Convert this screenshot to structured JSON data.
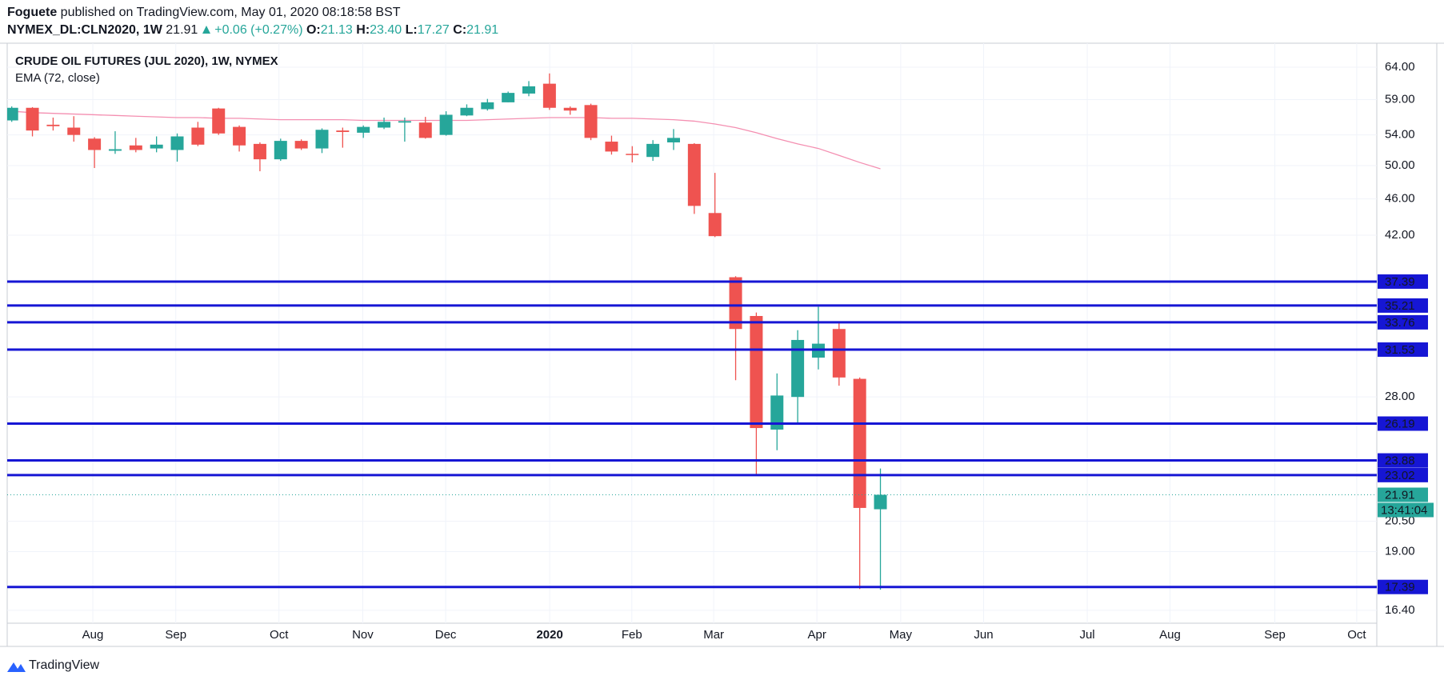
{
  "header": {
    "author": "Foguete",
    "published": "published on TradingView.com, May 01, 2020 08:18:58 BST",
    "symbol": "NYMEX_DL:CLN2020, 1W",
    "price": "21.91",
    "change": "+0.06 (+0.27%)",
    "ohlc": [
      {
        "label": "O:",
        "value": "21.13"
      },
      {
        "label": "H:",
        "value": "23.40"
      },
      {
        "label": "L:",
        "value": "17.27"
      },
      {
        "label": "C:",
        "value": "21.91"
      }
    ]
  },
  "chart_data": {
    "type": "candlestick",
    "title": "CRUDE OIL FUTURES (JUL 2020), 1W, NYMEX",
    "x": [
      0,
      1,
      2,
      3,
      4,
      5,
      6,
      7,
      8,
      9,
      10,
      11,
      12,
      13,
      14,
      15,
      16,
      17,
      18,
      19,
      20,
      21,
      22,
      23,
      24,
      25,
      26,
      27,
      28,
      29,
      30,
      31,
      32,
      33,
      34,
      35,
      36,
      37,
      38,
      39,
      40,
      41,
      42
    ],
    "open": [
      56.0,
      57.8,
      55.4,
      55.0,
      53.5,
      51.9,
      52.6,
      52.2,
      52.0,
      55.0,
      57.7,
      55.1,
      52.8,
      50.8,
      53.2,
      52.2,
      54.6,
      54.3,
      55.0,
      55.7,
      55.7,
      54.0,
      56.7,
      57.6,
      58.6,
      59.9,
      61.4,
      57.8,
      58.2,
      53.1,
      51.5,
      51.1,
      53.0,
      52.8,
      44.4,
      37.8,
      34.3,
      25.8,
      28.0,
      30.9,
      33.2,
      29.3,
      21.13
    ],
    "high": [
      58.0,
      57.9,
      56.4,
      56.6,
      53.7,
      54.5,
      53.6,
      53.8,
      54.2,
      55.8,
      57.8,
      55.3,
      53.0,
      53.5,
      53.4,
      54.9,
      55.0,
      55.3,
      56.4,
      56.4,
      56.5,
      57.3,
      58.3,
      59.1,
      60.2,
      61.8,
      63.0,
      58.0,
      58.4,
      53.9,
      52.5,
      53.3,
      54.8,
      52.9,
      49.1,
      37.9,
      34.6,
      29.7,
      33.1,
      35.1,
      33.8,
      29.4,
      23.4
    ],
    "low": [
      55.8,
      53.8,
      54.6,
      53.1,
      49.7,
      51.5,
      51.7,
      51.7,
      50.5,
      52.5,
      54.0,
      51.8,
      49.3,
      50.6,
      52.0,
      51.6,
      52.3,
      53.6,
      54.8,
      53.1,
      53.5,
      53.9,
      56.6,
      57.4,
      58.6,
      59.5,
      57.5,
      56.8,
      53.3,
      51.4,
      50.4,
      50.6,
      52.0,
      44.3,
      41.8,
      29.2,
      23.0,
      24.5,
      26.2,
      30.0,
      28.8,
      17.3,
      17.27
    ],
    "close": [
      57.8,
      54.6,
      55.2,
      54.0,
      52.0,
      52.1,
      52.0,
      52.7,
      53.8,
      52.7,
      54.2,
      52.6,
      50.8,
      53.2,
      52.2,
      54.7,
      54.4,
      55.1,
      55.8,
      55.9,
      53.6,
      56.8,
      57.8,
      58.6,
      60.0,
      61.0,
      57.8,
      57.4,
      53.6,
      51.8,
      51.4,
      52.8,
      53.6,
      45.2,
      41.9,
      33.2,
      25.9,
      28.1,
      32.3,
      32.0,
      29.4,
      21.2,
      21.91
    ],
    "up_color": "#26a69a",
    "down_color": "#ef5350",
    "series": [
      {
        "name": "EMA (72, close)",
        "color": "#f48fb1",
        "values": [
          57.3,
          57.1,
          57.0,
          56.9,
          56.8,
          56.7,
          56.6,
          56.5,
          56.4,
          56.4,
          56.3,
          56.3,
          56.2,
          56.1,
          56.1,
          56.1,
          56.1,
          56.0,
          56.0,
          56.0,
          56.0,
          56.0,
          56.0,
          56.1,
          56.2,
          56.3,
          56.4,
          56.4,
          56.4,
          56.3,
          56.3,
          56.2,
          56.1,
          55.9,
          55.5,
          55.0,
          54.3,
          53.5,
          52.8,
          52.2,
          51.3,
          50.4,
          49.6
        ]
      }
    ],
    "xlim": [
      -0.22,
      66.0
    ],
    "xticks": [
      {
        "value": 3.92,
        "label": "Aug"
      },
      {
        "value": 7.93,
        "label": "Sep"
      },
      {
        "value": 12.92,
        "label": "Oct"
      },
      {
        "value": 16.97,
        "label": "Nov"
      },
      {
        "value": 20.98,
        "label": "Dec"
      },
      {
        "value": 26.01,
        "label": "2020"
      },
      {
        "value": 29.98,
        "label": "Feb"
      },
      {
        "value": 33.94,
        "label": "Mar"
      },
      {
        "value": 38.93,
        "label": "Apr"
      },
      {
        "value": 42.98,
        "label": "May"
      },
      {
        "value": 46.99,
        "label": "Jun"
      },
      {
        "value": 52.0,
        "label": "Jul"
      },
      {
        "value": 56.0,
        "label": "Aug"
      },
      {
        "value": 61.07,
        "label": "Sep"
      },
      {
        "value": 65.03,
        "label": "Oct"
      }
    ],
    "ylim": [
      15.88,
      67.96
    ],
    "yticks": [
      {
        "value": 64,
        "label": "64.00"
      },
      {
        "value": 59,
        "label": "59.00"
      },
      {
        "value": 54,
        "label": "54.00"
      },
      {
        "value": 50,
        "label": "50.00"
      },
      {
        "value": 46,
        "label": "46.00"
      },
      {
        "value": 42,
        "label": "42.00"
      },
      {
        "value": 28,
        "label": "28.00"
      },
      {
        "value": 20.5,
        "label": "20.50"
      },
      {
        "value": 19,
        "label": "19.00"
      },
      {
        "value": 16.4,
        "label": "16.40"
      }
    ],
    "log_scale": true,
    "grid": true,
    "levels": [
      37.39,
      35.21,
      33.76,
      31.53,
      26.19,
      23.88,
      23.02,
      17.39
    ],
    "level_color": "#1616d4",
    "countdown": "13:41:04"
  },
  "footer": {
    "brand": "TradingView"
  }
}
